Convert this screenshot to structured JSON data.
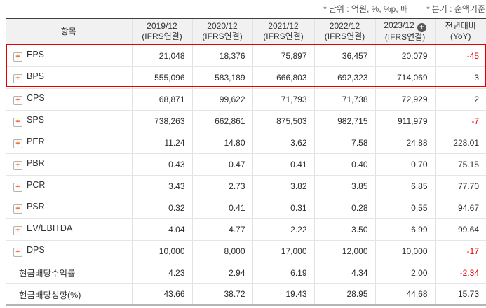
{
  "notes": {
    "unit": {
      "star": "*",
      "text": "단위 : 억원, %, %p, 배"
    },
    "basis": {
      "star": "*",
      "text": "분기 : 순액기준"
    }
  },
  "table": {
    "item_header": "항목",
    "columns": [
      {
        "period": "2019/12",
        "standard": "(IFRS연결)"
      },
      {
        "period": "2020/12",
        "standard": "(IFRS연결)"
      },
      {
        "period": "2021/12",
        "standard": "(IFRS연결)"
      },
      {
        "period": "2022/12",
        "standard": "(IFRS연결)"
      },
      {
        "period": "2023/12",
        "standard": "(IFRS연결)",
        "expand_icon": "+"
      }
    ],
    "yoy_header": {
      "line1": "전년대비",
      "line2": "(YoY)"
    },
    "plus_icon_glyph": "+",
    "rows": [
      {
        "label": "EPS",
        "expandable": true,
        "highlighted": true,
        "values": [
          "21,048",
          "18,376",
          "75,897",
          "36,457",
          "20,079"
        ],
        "yoy": "-45"
      },
      {
        "label": "BPS",
        "expandable": true,
        "highlighted": true,
        "values": [
          "555,096",
          "583,189",
          "666,803",
          "692,323",
          "714,069"
        ],
        "yoy": "3"
      },
      {
        "label": "CPS",
        "expandable": true,
        "values": [
          "68,871",
          "99,622",
          "71,793",
          "71,738",
          "72,929"
        ],
        "yoy": "2"
      },
      {
        "label": "SPS",
        "expandable": true,
        "values": [
          "738,263",
          "662,861",
          "875,503",
          "982,715",
          "911,979"
        ],
        "yoy": "-7"
      },
      {
        "label": "PER",
        "expandable": true,
        "values": [
          "11.24",
          "14.80",
          "3.62",
          "7.58",
          "24.88"
        ],
        "yoy": "228.01"
      },
      {
        "label": "PBR",
        "expandable": true,
        "values": [
          "0.43",
          "0.47",
          "0.41",
          "0.40",
          "0.70"
        ],
        "yoy": "75.15"
      },
      {
        "label": "PCR",
        "expandable": true,
        "values": [
          "3.43",
          "2.73",
          "3.82",
          "3.85",
          "6.85"
        ],
        "yoy": "77.70"
      },
      {
        "label": "PSR",
        "expandable": true,
        "values": [
          "0.32",
          "0.41",
          "0.31",
          "0.28",
          "0.55"
        ],
        "yoy": "94.67"
      },
      {
        "label": "EV/EBITDA",
        "expandable": true,
        "values": [
          "4.04",
          "4.77",
          "2.22",
          "3.50",
          "6.99"
        ],
        "yoy": "99.64"
      },
      {
        "label": "DPS",
        "expandable": true,
        "values": [
          "10,000",
          "8,000",
          "17,000",
          "12,000",
          "10,000"
        ],
        "yoy": "-17"
      },
      {
        "label": "현금배당수익률",
        "expandable": false,
        "values": [
          "4.23",
          "2.94",
          "6.19",
          "4.34",
          "2.00"
        ],
        "yoy": "-2.34"
      },
      {
        "label": "현금배당성향(%)",
        "expandable": false,
        "values": [
          "43.66",
          "38.72",
          "19.43",
          "28.95",
          "44.68"
        ],
        "yoy": "15.73"
      }
    ]
  },
  "colors": {
    "highlight_border": "#e60000",
    "negative_value": "#e60000",
    "plus_icon": "#f25206",
    "header_bg": "#f1f1f1",
    "header_badge_bg": "#57575a"
  }
}
